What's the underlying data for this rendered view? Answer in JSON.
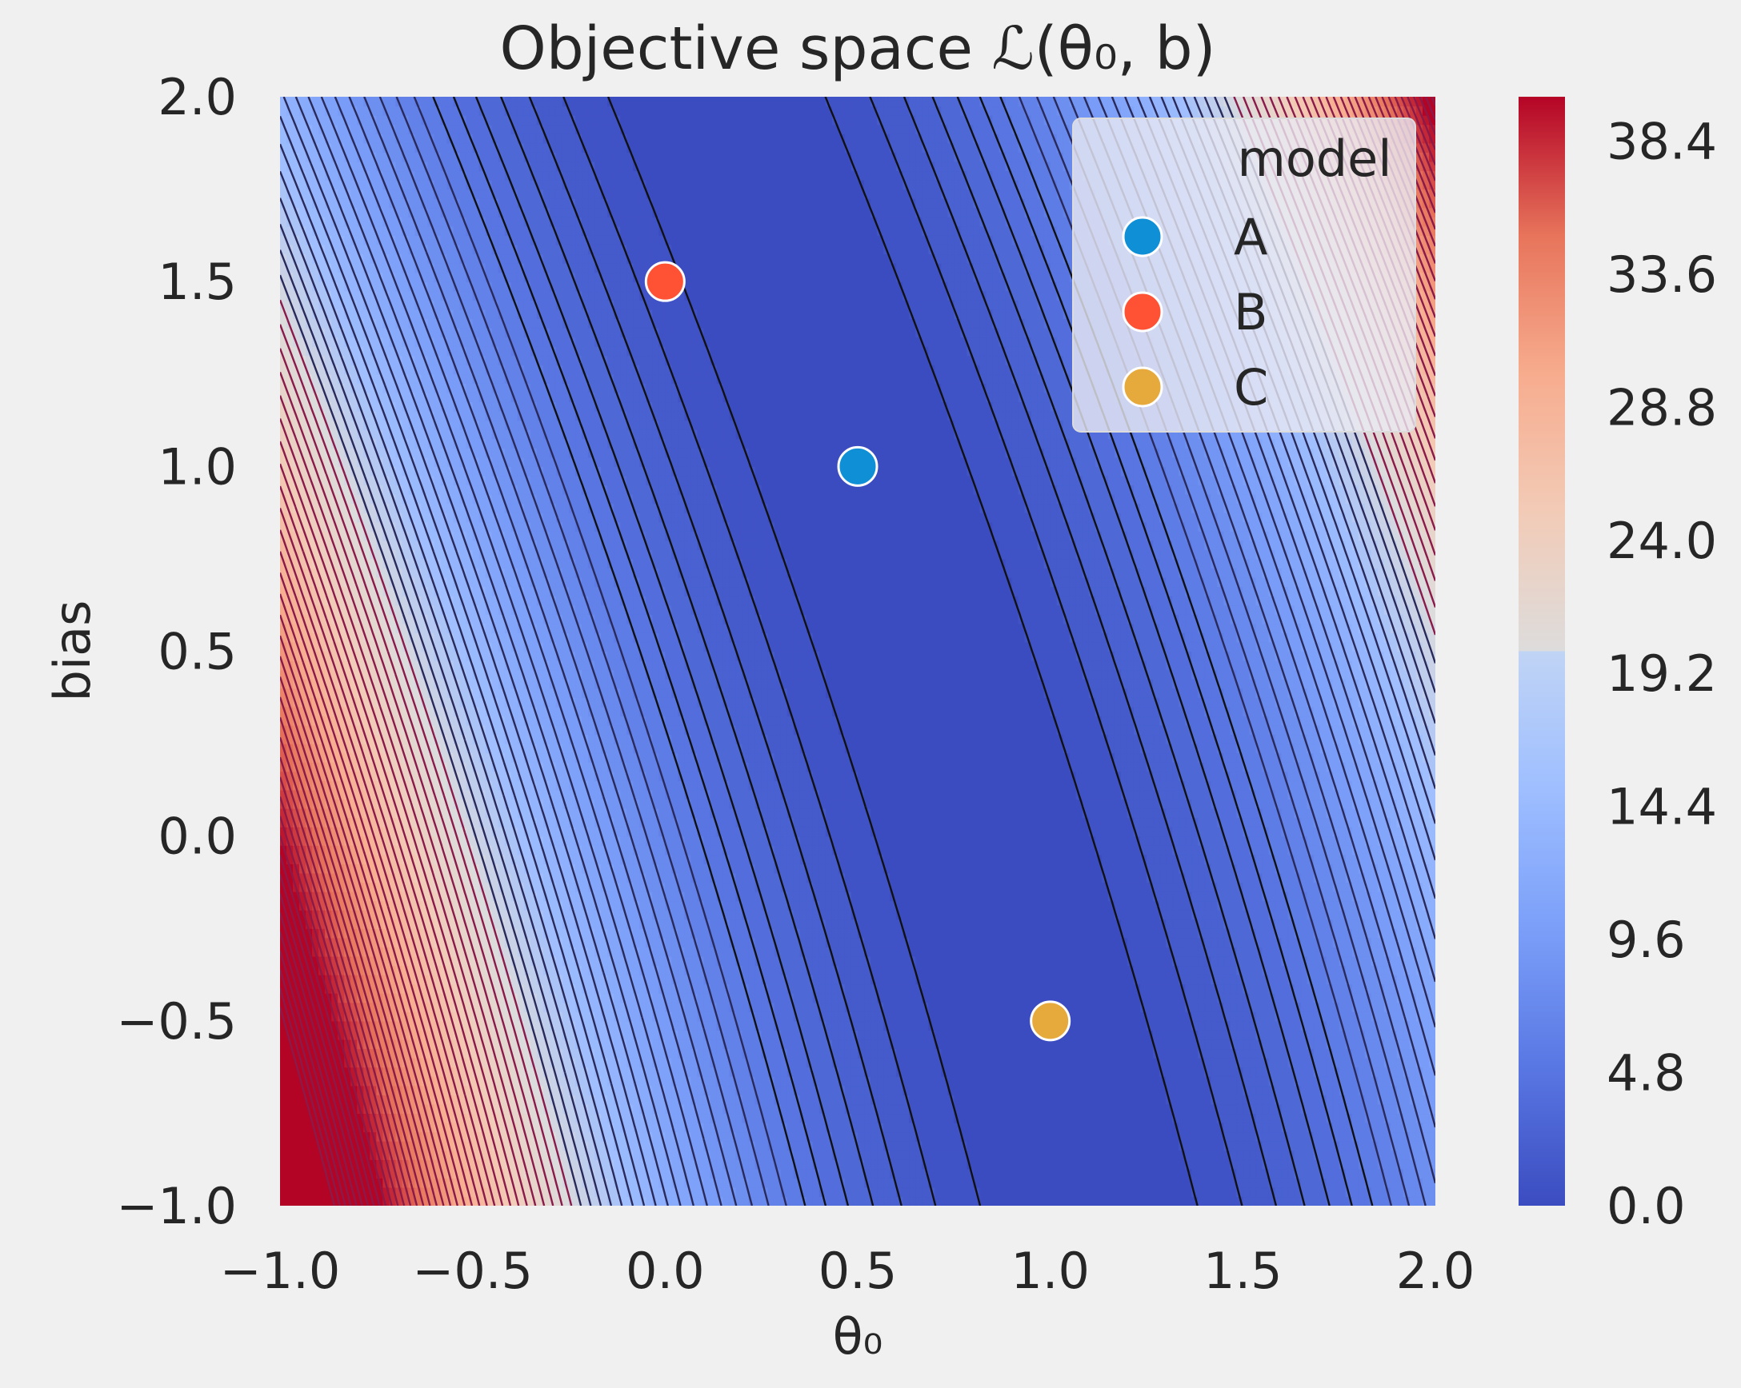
{
  "chart_data": {
    "type": "contour",
    "title": "Objective space ℒ(θ₀, b)",
    "xlabel": "θ₀",
    "ylabel": "bias",
    "xlim": [
      -1.0,
      2.0
    ],
    "ylim": [
      -1.0,
      2.0
    ],
    "x_ticks": [
      "−1.0",
      "−0.5",
      "0.0",
      "0.5",
      "1.0",
      "1.5",
      "2.0"
    ],
    "y_ticks": [
      "2.0",
      "1.5",
      "1.0",
      "0.5",
      "0.0",
      "−0.5",
      "−1.0"
    ],
    "colorbar": {
      "colormap": "coolwarm",
      "range": [
        0.0,
        40.0
      ],
      "ticks": [
        "38.4",
        "33.6",
        "28.8",
        "24.0",
        "19.2",
        "14.4",
        "9.6",
        "4.8",
        "0.0"
      ],
      "tick_values": [
        38.4,
        33.6,
        28.8,
        24.0,
        19.2,
        14.4,
        9.6,
        4.8,
        0.0
      ]
    },
    "legend": {
      "title": "model",
      "placement": "upper right",
      "entries": [
        {
          "label": "A",
          "color": "#0f8fd6"
        },
        {
          "label": "B",
          "color": "#ff5134"
        },
        {
          "label": "C",
          "color": "#e6aa3c"
        }
      ]
    },
    "points": [
      {
        "label": "A",
        "x": 0.5,
        "y": 1.0,
        "color": "#0f8fd6"
      },
      {
        "label": "B",
        "x": 0.0,
        "y": 1.5,
        "color": "#ff5134"
      },
      {
        "label": "C",
        "x": 1.0,
        "y": -0.5,
        "color": "#e6aa3c"
      }
    ],
    "grid": false,
    "background": "#f0f0f0"
  }
}
